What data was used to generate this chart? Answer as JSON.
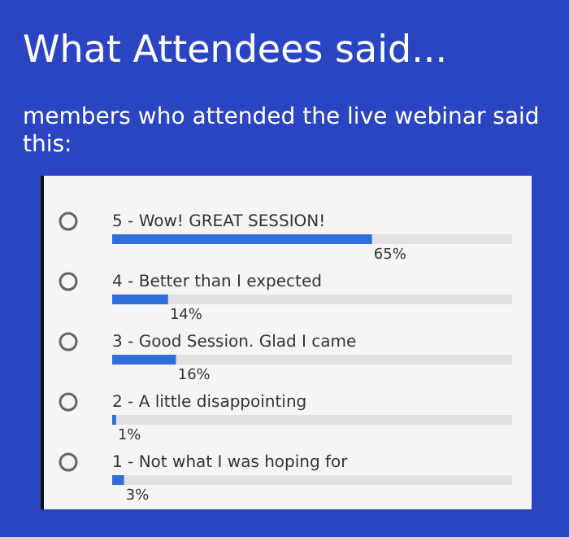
{
  "chart_data": {
    "type": "bar",
    "orientation": "horizontal",
    "stacked": true,
    "title": "What Attendees said...",
    "subtitle": "members who attended the live webinar said this:",
    "categories": [
      "5 - Wow! GREAT SESSION!",
      "4 - Better than I expected",
      "3 - Good Session. Glad I came",
      "2 - A little disappointing",
      "1 - Not what I was hoping for"
    ],
    "series": [
      {
        "color": "#2f6fdb",
        "values": [
          65,
          14,
          16,
          1,
          3
        ],
        "value_labels": [
          "65%",
          "14%",
          "16%",
          "1%",
          "3%"
        ]
      },
      {
        "color": "#e2e2e2",
        "values": [
          35,
          86,
          84,
          99,
          97
        ]
      }
    ],
    "xlim": [
      0,
      100
    ],
    "tick_labels": false,
    "grid": false
  }
}
